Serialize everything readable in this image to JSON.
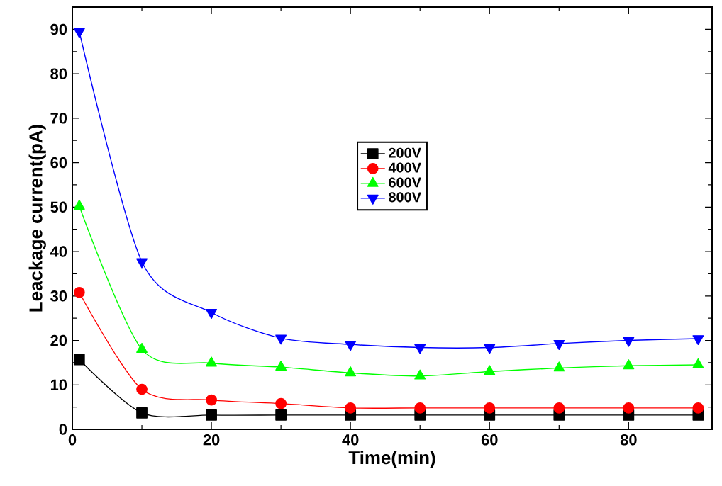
{
  "chart_data": {
    "type": "line",
    "xlabel": "Time(min)",
    "ylabel": "Leackage current(pA)",
    "x": [
      1,
      10,
      20,
      30,
      40,
      50,
      60,
      70,
      80,
      90
    ],
    "series": [
      {
        "name": "200V",
        "color": "#000000",
        "marker": "square",
        "values": [
          15.7,
          3.7,
          3.2,
          3.2,
          3.2,
          3.2,
          3.2,
          3.2,
          3.2,
          3.2
        ]
      },
      {
        "name": "400V",
        "color": "#ff0000",
        "marker": "circle",
        "values": [
          30.8,
          9,
          6.6,
          5.8,
          4.8,
          4.8,
          4.8,
          4.8,
          4.8,
          4.8
        ]
      },
      {
        "name": "600V",
        "color": "#00ff00",
        "marker": "triangle",
        "values": [
          50.2,
          18,
          14.9,
          14,
          12.7,
          12,
          13,
          13.8,
          14.3,
          14.5
        ]
      },
      {
        "name": "800V",
        "color": "#0000ff",
        "marker": "triangle-down",
        "values": [
          89.5,
          37.7,
          26.3,
          20.5,
          19.1,
          18.4,
          18.4,
          19.3,
          20,
          20.4
        ]
      }
    ],
    "xlim": [
      0,
      92
    ],
    "ylim": [
      0,
      95
    ],
    "xticks": [
      0,
      20,
      40,
      60,
      80
    ],
    "yticks": [
      0,
      10,
      20,
      30,
      40,
      50,
      60,
      70,
      80,
      90
    ],
    "legend": "center",
    "grid": false,
    "line_style": "solid"
  }
}
